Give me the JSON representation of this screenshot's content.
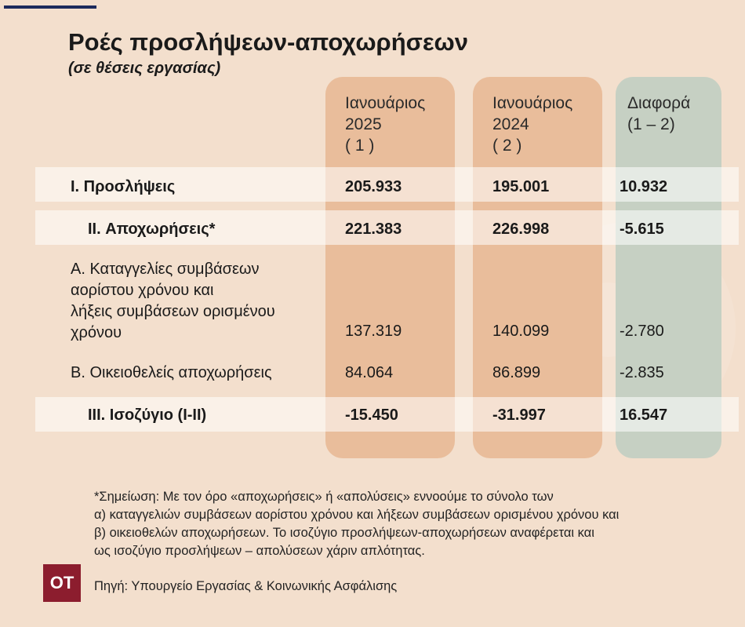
{
  "header": {
    "title": "Ροές προσλήψεων-αποχωρήσεων",
    "subtitle": "(σε θέσεις εργασίας)"
  },
  "columns": [
    {
      "lines": [
        "Ιανουάριος",
        "2025",
        "( 1 )"
      ]
    },
    {
      "lines": [
        "Ιανουάριος",
        "2024",
        "( 2 )"
      ]
    },
    {
      "lines": [
        "Διαφορά",
        "(1 – 2)"
      ]
    }
  ],
  "chart_data": {
    "type": "table",
    "title": "Ροές προσλήψεων-αποχωρήσεων",
    "subtitle": "(σε θέσεις εργασίας)",
    "headers": [
      "Ιανουάριος 2025 ( 1 )",
      "Ιανουάριος 2024 ( 2 )",
      "Διαφορά (1 – 2)"
    ],
    "rows": [
      {
        "label": "I. Προσλήψεις",
        "values": [
          "205.933",
          "195.001",
          "10.932"
        ]
      },
      {
        "label": "II. Αποχωρήσεις*",
        "values": [
          "221.383",
          "226.998",
          "-5.615"
        ]
      },
      {
        "label_lines": [
          "Α. Καταγγελίες συμβάσεων",
          "αορίστου χρόνου  και",
          "λήξεις συμβάσεων ορισμένου",
          "χρόνου"
        ],
        "values": [
          "137.319",
          "140.099",
          "-2.780"
        ]
      },
      {
        "label": "Β. Οικειοθελείς  αποχωρήσεις",
        "values": [
          "84.064",
          "86.899",
          "-2.835"
        ]
      },
      {
        "label": "III. Ισοζύγιο (I-II)",
        "values": [
          "-15.450",
          "-31.997",
          "16.547"
        ]
      }
    ]
  },
  "footer": {
    "note_lines": [
      "*Σημείωση: Με τον όρο «αποχωρήσεις» ή «απολύσεις» εννοούμε το σύνολο των",
      "α) καταγγελιών  συμβάσεων αορίστου χρόνου και λήξεων συμβάσεων ορισμένου χρόνου και",
      "β) οικειοθελών αποχωρήσεων. Το ισοζύγιο προσλήψεων-αποχωρήσεων αναφέρεται και",
      "ως ισοζύγιο προσλήψεων – απολύσεων χάριν απλότητας."
    ],
    "logo_text": "OT",
    "source": "Πηγή: Υπουργείο Εργασίας & Κοινωνικής Ασφάλισης"
  },
  "colors": {
    "background": "#f3dfcd",
    "column_highlight": "#e9bd9b",
    "difference_column": "#c6d0c3",
    "logo": "#8c1d2e",
    "accent_bar": "#1c2a5c"
  }
}
